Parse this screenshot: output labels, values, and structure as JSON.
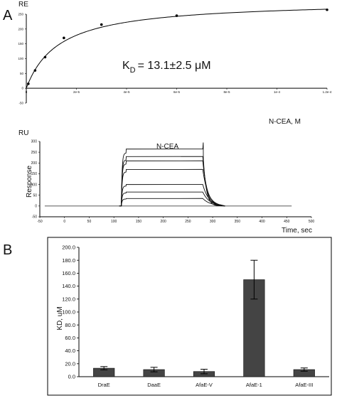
{
  "panels": {
    "a": "A",
    "b": "B"
  },
  "chart_data": [
    {
      "type": "scatter",
      "xlabel": "N-CEA, M",
      "ylabel": "RE",
      "annotation": {
        "prefix": "K",
        "sub": "D",
        "rest": "= 13.1±2.5 μM"
      },
      "xlim": [
        0,
        0.00012
      ],
      "ylim": [
        -50,
        250
      ],
      "xticks": [
        "0",
        "2e-5",
        "4e-5",
        "6e-5",
        "8e-5",
        "1e-4",
        "1.2e-4"
      ],
      "yticks": [
        "-50",
        "0",
        "50",
        "100",
        "150",
        "200",
        "250"
      ],
      "x": [
        8e-07,
        3.5e-06,
        7.5e-06,
        1.5e-05,
        3e-05,
        6e-05,
        0.00012
      ],
      "y": [
        15,
        60,
        105,
        170,
        215,
        245,
        265
      ],
      "fit": {
        "model": "Rmax*x/(KD+x)",
        "Rmax": 296,
        "KD": 1.31e-05
      },
      "grid": false
    },
    {
      "type": "line",
      "title": "N-CEA",
      "xlabel": "Time, sec",
      "ylabel": "Response",
      "unit_label": "RU",
      "xlim": [
        -50,
        500
      ],
      "ylim": [
        -50,
        300
      ],
      "xticks": [
        "-50",
        "0",
        "50",
        "100",
        "150",
        "200",
        "250",
        "300",
        "350",
        "400",
        "450",
        "500"
      ],
      "yticks": [
        "-50",
        "0",
        "50",
        "100",
        "150",
        "200",
        "250",
        "300"
      ],
      "injection_start": 115,
      "injection_end": 280,
      "plateaus": [
        265,
        230,
        210,
        170,
        100,
        65,
        35
      ],
      "baseline_range": [
        -40,
        460
      ],
      "grid": false
    },
    {
      "type": "bar",
      "ylabel": "KD, uM",
      "categories": [
        "DraE",
        "DaaE",
        "AfaE-V",
        "AfaE-1",
        "AfaE-III"
      ],
      "values": [
        13.1,
        11.0,
        8.0,
        150.0,
        11.0
      ],
      "errors": [
        2.5,
        3.5,
        3.5,
        30.0,
        2.5
      ],
      "ylim": [
        0,
        200
      ],
      "yticks": [
        "0.0",
        "20.0",
        "40.0",
        "60.0",
        "80.0",
        "100.0",
        "120.0",
        "140.0",
        "160.0",
        "180.0",
        "200.0"
      ],
      "bar_color": "#444444",
      "grid": false
    }
  ]
}
